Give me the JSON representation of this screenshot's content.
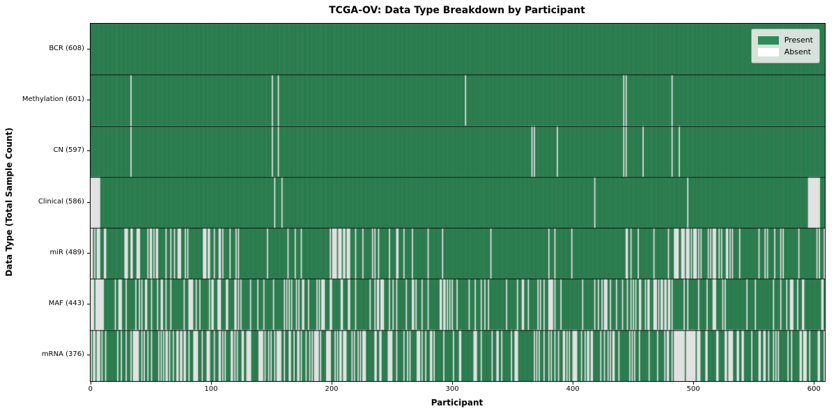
{
  "title": "TCGA-OV: Data Type Breakdown by Participant",
  "xlabel": "Participant",
  "ylabel": "Data Type (Total Sample Count)",
  "legend": {
    "present_label": "Present",
    "absent_label": "Absent"
  },
  "colors": {
    "present": "#2E8B57",
    "absent": "#FFFFFF",
    "bar_edge": "rgba(25,25,25,0.5)",
    "row_divider": "#111111",
    "axis": "#000000",
    "legend_bg": "#EEF0EE",
    "legend_border": "#9A9A9A"
  },
  "chart_data": {
    "type": "heatmap",
    "title": "TCGA-OV: Data Type Breakdown by Participant",
    "xlabel": "Participant",
    "ylabel": "Data Type (Total Sample Count)",
    "n_participants": 608,
    "x_ticks": [
      0,
      100,
      200,
      300,
      400,
      500,
      600
    ],
    "xlim": [
      -0.5,
      608.5
    ],
    "legend_entries": [
      {
        "label": "Present",
        "color": "#2E8B57"
      },
      {
        "label": "Absent",
        "color": "#FFFFFF"
      }
    ],
    "prng_seed": 1337,
    "rows": [
      {
        "label": "BCR (608)",
        "data_type": "BCR",
        "present_count": 608,
        "absent_count": 0,
        "absent_indices": []
      },
      {
        "label": "Methylation (601)",
        "data_type": "Methylation",
        "present_count": 601,
        "absent_count": 7,
        "absent_indices": [
          33,
          150,
          155,
          310,
          441,
          443,
          481
        ]
      },
      {
        "label": "CN (597)",
        "data_type": "CN",
        "present_count": 597,
        "absent_count": 11,
        "absent_indices": [
          33,
          150,
          155,
          365,
          367,
          386,
          441,
          443,
          457,
          481,
          487
        ]
      },
      {
        "label": "Clinical (586)",
        "data_type": "Clinical",
        "present_count": 586,
        "absent_count": 22,
        "absent_indices": [
          0,
          1,
          2,
          3,
          4,
          5,
          6,
          7,
          152,
          158,
          417,
          494,
          594,
          595,
          596,
          597,
          598,
          599,
          600,
          601,
          602,
          603
        ]
      },
      {
        "label": "miR (489)",
        "data_type": "miR",
        "present_count": 489,
        "absent_count": 119,
        "absent_clusters": [
          [
            0,
            8,
            0.85
          ],
          [
            10,
            64,
            0.3
          ],
          [
            65,
            120,
            0.28
          ],
          [
            121,
            145,
            0.1
          ],
          [
            146,
            165,
            0.05
          ],
          [
            166,
            195,
            0.12
          ],
          [
            196,
            215,
            0.45
          ],
          [
            216,
            262,
            0.18
          ],
          [
            263,
            318,
            0.04
          ],
          [
            319,
            345,
            0.12
          ],
          [
            346,
            400,
            0.05
          ],
          [
            401,
            438,
            0.08
          ],
          [
            439,
            448,
            0.5
          ],
          [
            449,
            480,
            0.06
          ],
          [
            481,
            503,
            0.75
          ],
          [
            504,
            540,
            0.2
          ],
          [
            541,
            570,
            0.15
          ],
          [
            571,
            586,
            0.35
          ],
          [
            587,
            599,
            0.08
          ],
          [
            600,
            607,
            0.3
          ]
        ]
      },
      {
        "label": "MAF (443)",
        "data_type": "MAF",
        "present_count": 443,
        "absent_count": 165,
        "absent_clusters": [
          [
            0,
            10,
            0.8
          ],
          [
            11,
            75,
            0.38
          ],
          [
            76,
            130,
            0.35
          ],
          [
            131,
            160,
            0.15
          ],
          [
            161,
            230,
            0.3
          ],
          [
            231,
            260,
            0.25
          ],
          [
            261,
            300,
            0.3
          ],
          [
            301,
            340,
            0.25
          ],
          [
            341,
            370,
            0.12
          ],
          [
            371,
            392,
            0.55
          ],
          [
            393,
            425,
            0.15
          ],
          [
            426,
            460,
            0.25
          ],
          [
            461,
            484,
            0.6
          ],
          [
            485,
            520,
            0.18
          ],
          [
            521,
            556,
            0.12
          ],
          [
            557,
            578,
            0.2
          ],
          [
            579,
            595,
            0.35
          ],
          [
            596,
            607,
            0.15
          ]
        ]
      },
      {
        "label": "mRNA (376)",
        "data_type": "mRNA",
        "present_count": 376,
        "absent_count": 232,
        "absent_clusters": [
          [
            0,
            10,
            0.8
          ],
          [
            11,
            100,
            0.45
          ],
          [
            101,
            160,
            0.4
          ],
          [
            161,
            220,
            0.42
          ],
          [
            221,
            280,
            0.45
          ],
          [
            281,
            330,
            0.3
          ],
          [
            331,
            390,
            0.35
          ],
          [
            391,
            440,
            0.3
          ],
          [
            441,
            482,
            0.25
          ],
          [
            483,
            509,
            0.85
          ],
          [
            510,
            550,
            0.3
          ],
          [
            551,
            585,
            0.35
          ],
          [
            586,
            607,
            0.45
          ]
        ]
      }
    ]
  }
}
